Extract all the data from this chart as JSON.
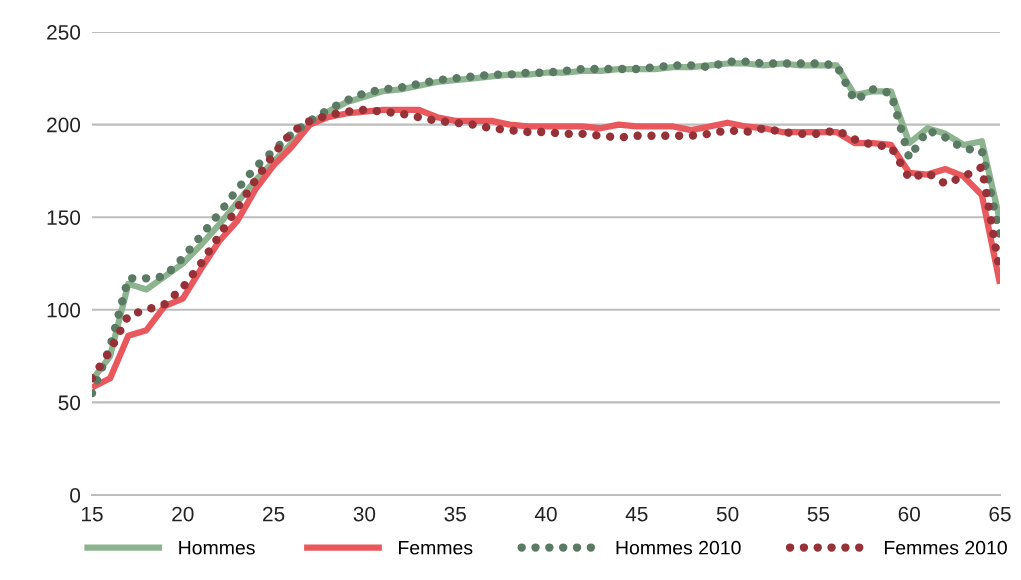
{
  "chart_data": {
    "type": "line",
    "x": [
      15,
      16,
      17,
      18,
      19,
      20,
      21,
      22,
      23,
      24,
      25,
      26,
      27,
      28,
      29,
      30,
      31,
      32,
      33,
      34,
      35,
      36,
      37,
      38,
      39,
      40,
      41,
      42,
      43,
      44,
      45,
      46,
      47,
      48,
      49,
      50,
      51,
      52,
      53,
      54,
      55,
      56,
      57,
      58,
      59,
      60,
      61,
      62,
      63,
      64,
      65
    ],
    "series": [
      {
        "name": "Hommes",
        "color": "#8cb48f",
        "line_style": "solid",
        "values": [
          62,
          75,
          114,
          111,
          118,
          125,
          135,
          146,
          158,
          170,
          180,
          190,
          200,
          207,
          212,
          215,
          218,
          219,
          221,
          223,
          224,
          225,
          226,
          227,
          227,
          228,
          228,
          229,
          229,
          230,
          230,
          230,
          231,
          231,
          232,
          233,
          233,
          232,
          233,
          232,
          232,
          232,
          216,
          218,
          218,
          190,
          198,
          195,
          189,
          191,
          148
        ]
      },
      {
        "name": "Femmes",
        "color": "#e8585c",
        "line_style": "solid",
        "values": [
          58,
          63,
          86,
          89,
          102,
          106,
          122,
          137,
          148,
          165,
          178,
          188,
          200,
          204,
          206,
          207,
          208,
          208,
          208,
          204,
          202,
          202,
          202,
          200,
          199,
          199,
          199,
          199,
          198,
          200,
          199,
          199,
          199,
          197,
          199,
          201,
          199,
          198,
          196,
          196,
          196,
          196,
          190,
          190,
          189,
          174,
          173,
          176,
          172,
          162,
          114
        ]
      },
      {
        "name": "Hommes 2010",
        "color": "#5a7a64",
        "line_style": "dotted",
        "values": [
          55,
          80,
          117,
          117,
          118,
          128,
          140,
          152,
          165,
          177,
          186,
          195,
          202,
          208,
          213,
          217,
          219,
          220,
          222,
          224,
          225,
          226,
          227,
          227,
          228,
          228,
          229,
          230,
          230,
          230,
          230,
          231,
          232,
          232,
          231,
          234,
          234,
          233,
          233,
          233,
          233,
          232,
          213,
          219,
          217,
          182,
          197,
          193,
          187,
          186,
          140
        ]
      },
      {
        "name": "Femmes 2010",
        "color": "#963237",
        "line_style": "dotted",
        "values": [
          63,
          78,
          97,
          100,
          103,
          112,
          125,
          140,
          155,
          170,
          184,
          196,
          202,
          205,
          207,
          208,
          207,
          206,
          204,
          202,
          201,
          200,
          198,
          197,
          196,
          196,
          195,
          195,
          194,
          193,
          194,
          194,
          194,
          194,
          195,
          197,
          196,
          198,
          196,
          195,
          195,
          197,
          192,
          189,
          188,
          171,
          174,
          168,
          172,
          177,
          120
        ]
      }
    ],
    "xlim": [
      15,
      65
    ],
    "xticks": [
      15,
      20,
      25,
      30,
      35,
      40,
      45,
      50,
      55,
      60,
      65
    ],
    "ylim": [
      0,
      250
    ],
    "yticks": [
      0,
      50,
      100,
      150,
      200,
      250
    ],
    "grid": "y",
    "legend": "bottom",
    "marker": "none"
  }
}
